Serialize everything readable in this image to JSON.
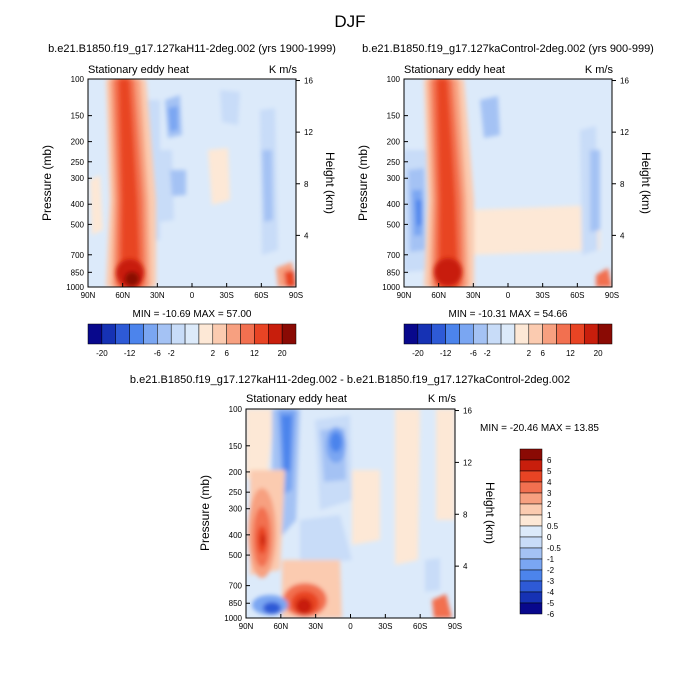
{
  "title": "DJF",
  "chart_data": [
    {
      "type": "heatmap",
      "panel": "top-left",
      "title": "b.e21.B1850.f19_g17.127kaH11-2deg.002 (yrs 1900-1999)",
      "left_string": "Stationary eddy heat",
      "right_string": "K m/s",
      "ylabel": "Pressure (mb)",
      "ylabel_right": "Height (km)",
      "x_ticks": [
        "90N",
        "60N",
        "30N",
        "0",
        "30S",
        "60S",
        "90S"
      ],
      "y_ticks": [
        "100",
        "150",
        "200",
        "250",
        "300",
        "400",
        "500",
        "700",
        "850",
        "1000"
      ],
      "height_ticks": [
        "16",
        "12",
        "8",
        "4"
      ],
      "min_max": "MIN = -10.69  MAX = 57.00",
      "min": -10.69,
      "max": 57.0
    },
    {
      "type": "heatmap",
      "panel": "top-right",
      "title": "b.e21.B1850.f19_g17.127kaControl-2deg.002 (yrs 900-999)",
      "left_string": "Stationary eddy heat",
      "right_string": "K m/s",
      "ylabel": "Pressure (mb)",
      "ylabel_right": "Height (km)",
      "x_ticks": [
        "90N",
        "60N",
        "30N",
        "0",
        "30S",
        "60S",
        "90S"
      ],
      "y_ticks": [
        "100",
        "150",
        "200",
        "250",
        "300",
        "400",
        "500",
        "700",
        "850",
        "1000"
      ],
      "height_ticks": [
        "16",
        "12",
        "8",
        "4"
      ],
      "min_max": "MIN = -10.31  MAX = 54.66",
      "min": -10.31,
      "max": 54.66
    },
    {
      "type": "heatmap",
      "panel": "bottom-difference",
      "title": "b.e21.B1850.f19_g17.127kaH11-2deg.002 - b.e21.B1850.f19_g17.127kaControl-2deg.002",
      "left_string": "Stationary eddy heat",
      "right_string": "K m/s",
      "ylabel": "Pressure (mb)",
      "ylabel_right": "Height (km)",
      "x_ticks": [
        "90N",
        "60N",
        "30N",
        "0",
        "30S",
        "60S",
        "90S"
      ],
      "y_ticks": [
        "100",
        "150",
        "200",
        "250",
        "300",
        "400",
        "500",
        "700",
        "850",
        "1000"
      ],
      "height_ticks": [
        "16",
        "12",
        "8",
        "4"
      ],
      "min_max": "MIN = -20.46  MAX =  13.85",
      "min": -20.46,
      "max": 13.85
    }
  ],
  "colorbar_top": {
    "colors": [
      "#08088c",
      "#1632b4",
      "#2e5ad6",
      "#4c84ec",
      "#7aa6f2",
      "#a4c2f4",
      "#c8dcf8",
      "#dceafa",
      "#fde8d6",
      "#fbcbb0",
      "#f7a080",
      "#f27050",
      "#e84424",
      "#c81e0c",
      "#8a0a04"
    ],
    "labels": [
      "-20",
      "-12",
      "-6",
      "-2",
      "2",
      "6",
      "12",
      "20"
    ]
  },
  "colorbar_diff": {
    "colors": [
      "#8a0a04",
      "#c81e0c",
      "#e84424",
      "#f27050",
      "#f7a080",
      "#fbcbb0",
      "#fde8d6",
      "#dceafa",
      "#c8dcf8",
      "#a4c2f4",
      "#7aa6f2",
      "#4c84ec",
      "#2e5ad6",
      "#1632b4",
      "#08088c"
    ],
    "labels": [
      "6",
      "5",
      "4",
      "3",
      "2",
      "1",
      "0.5",
      "0",
      "-0.5",
      "-1",
      "-2",
      "-3",
      "-4",
      "-5",
      "-6"
    ]
  }
}
